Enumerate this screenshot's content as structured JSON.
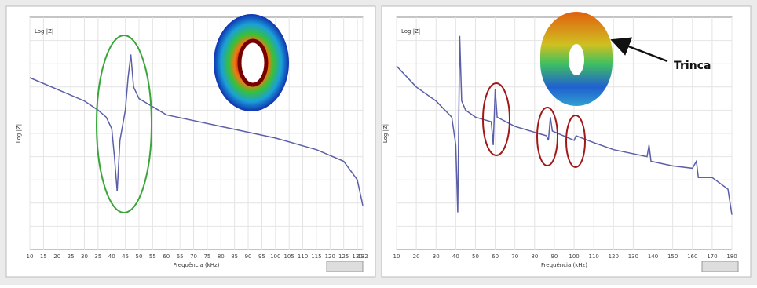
{
  "chart_data": [
    {
      "type": "line",
      "title": "Log |Z|",
      "x_label": "Frequência (kHz)",
      "y_label": "Log |Z|",
      "color": "#5a5fa8",
      "grid": true,
      "x": [
        10,
        20,
        30,
        35,
        38,
        40,
        41,
        42,
        43,
        45,
        46,
        47,
        48,
        50,
        60,
        80,
        100,
        115,
        125,
        130,
        132
      ],
      "values": [
        74,
        69,
        64,
        60,
        57,
        52,
        40,
        25,
        47,
        60,
        74,
        84,
        70,
        65,
        58,
        53,
        48,
        43,
        38,
        30,
        19
      ],
      "xlim": [
        10,
        132
      ],
      "ylim": [
        0,
        100
      ],
      "xticks": [
        10,
        15,
        20,
        25,
        30,
        35,
        40,
        45,
        50,
        55,
        60,
        65,
        70,
        75,
        80,
        85,
        90,
        95,
        100,
        105,
        110,
        115,
        120,
        125,
        130,
        132
      ]
    },
    {
      "type": "line",
      "title": "Log |Z|",
      "x_label": "Frequência (kHz)",
      "y_label": "Log |Z|",
      "annotation": "Trinca",
      "color": "#5a5fa8",
      "grid": true,
      "x": [
        10,
        20,
        30,
        38,
        40,
        41,
        42,
        43,
        45,
        50,
        58,
        59,
        60,
        61,
        70,
        86,
        87,
        88,
        89,
        100,
        101,
        110,
        120,
        137,
        138,
        139,
        150,
        160,
        162,
        163,
        170,
        178,
        180
      ],
      "values": [
        79,
        70,
        64,
        57,
        45,
        16,
        92,
        64,
        60,
        57,
        55,
        45,
        69,
        57,
        53,
        49,
        47,
        57,
        51,
        47,
        49,
        46,
        43,
        40,
        45,
        38,
        36,
        35,
        38,
        31,
        31,
        26,
        15
      ],
      "xlim": [
        10,
        180
      ],
      "ylim": [
        0,
        100
      ],
      "xticks": [
        10,
        20,
        30,
        40,
        50,
        60,
        70,
        80,
        90,
        100,
        110,
        120,
        130,
        140,
        150,
        160,
        170,
        180
      ]
    }
  ]
}
